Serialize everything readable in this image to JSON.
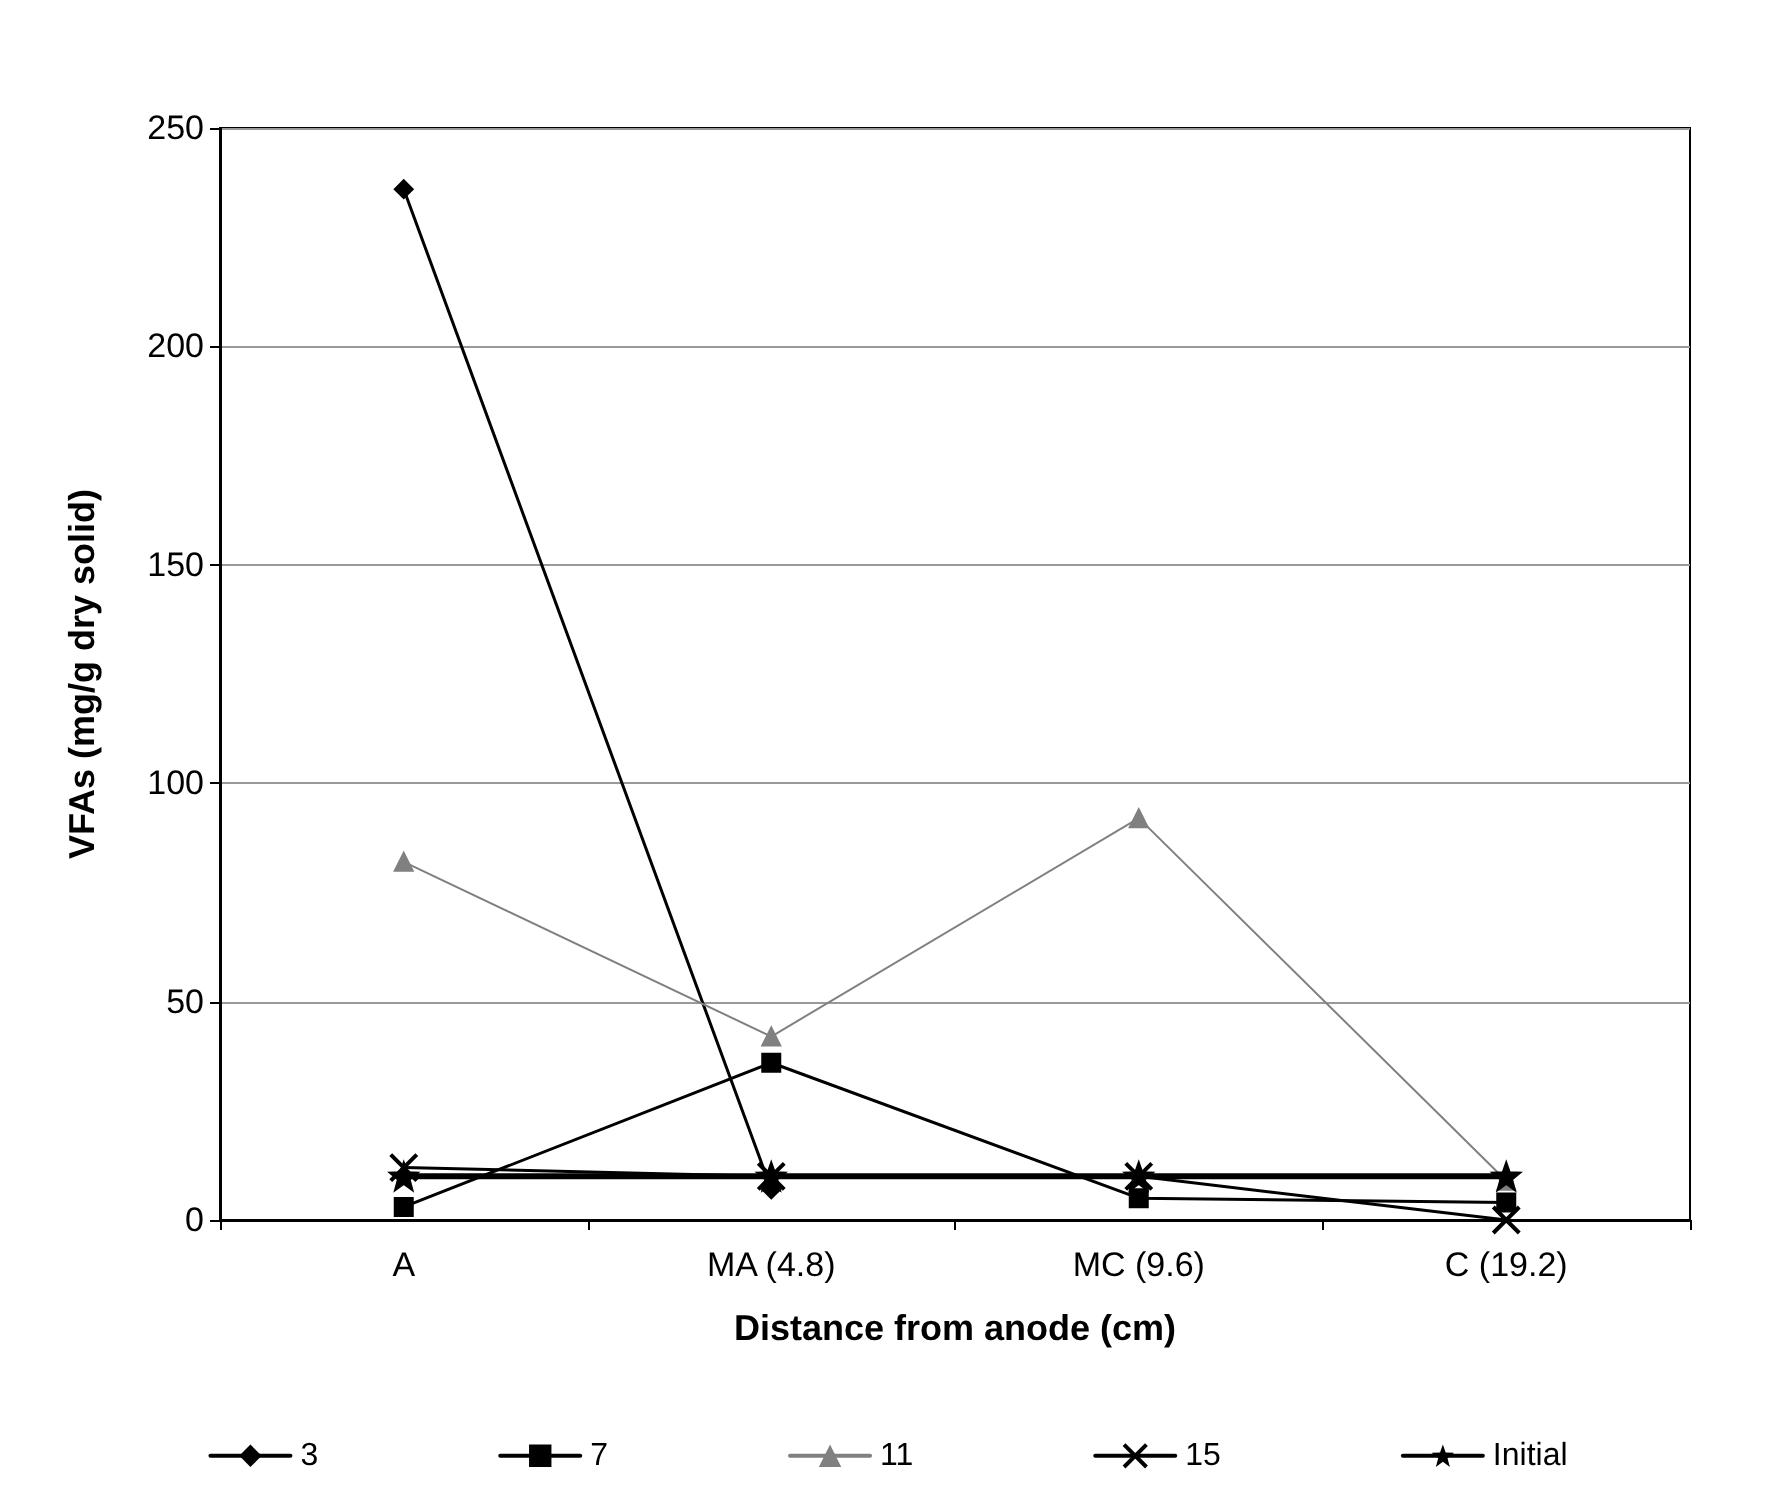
{
  "chart_data": {
    "type": "line",
    "xlabel": "Distance from anode (cm)",
    "ylabel": "VFAs (mg/g dry solid)",
    "categories": [
      "A",
      "MA (4.8)",
      "MC (9.6)",
      "C (19.2)"
    ],
    "series": [
      {
        "name": "3",
        "color": "#000000",
        "marker": "diamond",
        "values": [
          236,
          7,
          null,
          null
        ]
      },
      {
        "name": "7",
        "color": "#000000",
        "marker": "square",
        "values": [
          3,
          36,
          5,
          4
        ]
      },
      {
        "name": "11",
        "color": "#808080",
        "marker": "triangle",
        "values": [
          82,
          42,
          92,
          9
        ]
      },
      {
        "name": "15",
        "color": "#000000",
        "marker": "cross",
        "values": [
          12,
          10,
          10,
          0
        ]
      },
      {
        "name": "Initial",
        "color": "#000000",
        "marker": "star",
        "values": [
          10,
          10,
          10,
          10
        ]
      }
    ],
    "ylim": [
      0,
      250
    ],
    "yticks": [
      0,
      50,
      100,
      150,
      200,
      250
    ],
    "grid": "y",
    "legend": "bottom",
    "line_style": "solid"
  }
}
